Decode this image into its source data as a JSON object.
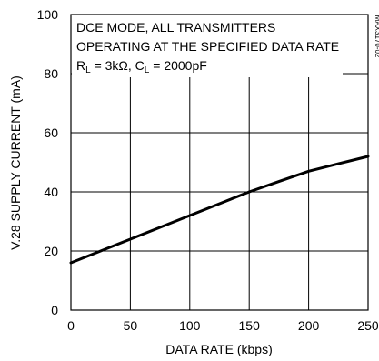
{
  "figure_id": "MAX3170-02",
  "chart_data": {
    "type": "line",
    "xlabel": "DATA RATE (kbps)",
    "ylabel": "V.28 SUPPLY CURRENT (mA)",
    "xlim": [
      0,
      250
    ],
    "ylim": [
      0,
      100
    ],
    "xticks": [
      0,
      50,
      100,
      150,
      200,
      250
    ],
    "yticks": [
      0,
      20,
      40,
      60,
      80,
      100
    ],
    "grid": true,
    "annotation": {
      "line1": "DCE MODE, ALL TRANSMITTERS",
      "line2": "OPERATING AT THE SPECIFIED DATA RATE",
      "line3_r": "R",
      "line3_r_sub": "L",
      "line3_r_val": " = 3kΩ, C",
      "line3_c_sub": "L",
      "line3_c_val": " = 2000pF"
    },
    "series": [
      {
        "x": [
          0,
          25,
          50,
          75,
          100,
          125,
          150,
          175,
          200,
          225,
          250
        ],
        "y": [
          16,
          20,
          24,
          28,
          32,
          36,
          40,
          43.5,
          47,
          49.5,
          52
        ]
      }
    ]
  }
}
